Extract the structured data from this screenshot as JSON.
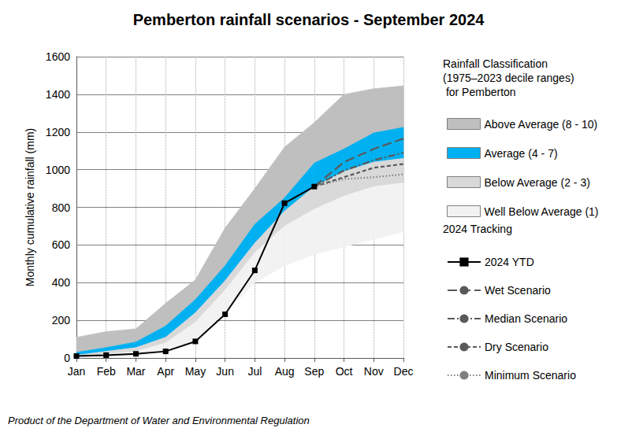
{
  "chart_data": {
    "type": "line",
    "title": "Pemberton rainfall scenarios - September 2024",
    "y_label": "Monthly cumulative rainfall (mm)",
    "categories": [
      "Jan",
      "Feb",
      "Mar",
      "Apr",
      "May",
      "Jun",
      "Jul",
      "Aug",
      "Sep",
      "Oct",
      "Nov",
      "Dec"
    ],
    "ylim": [
      0,
      1600
    ],
    "yticks": [
      0,
      200,
      400,
      600,
      800,
      1000,
      1200,
      1400,
      1600
    ],
    "grid": true,
    "legend": "right",
    "annotations": [
      "Rainfall Classification\n(1975–2023 decile ranges)\n for Pemberton",
      "2024 Tracking",
      "Product of the Department of Water and Environmental Regulation"
    ],
    "series": [
      {
        "name": "Above Average (8 - 10)",
        "type": "range",
        "color": "#bfbfbf",
        "lower": [
          30,
          55,
          85,
          170,
          310,
          490,
          710,
          850,
          1035,
          1110,
          1195,
          1225
        ],
        "upper": [
          110,
          140,
          155,
          290,
          415,
          690,
          900,
          1120,
          1250,
          1400,
          1430,
          1445
        ]
      },
      {
        "name": "Average (4 - 7)",
        "type": "range",
        "color": "#00b0f0",
        "lower": [
          15,
          35,
          55,
          110,
          240,
          410,
          610,
          780,
          910,
          990,
          1040,
          1060
        ],
        "upper": [
          30,
          55,
          85,
          170,
          310,
          490,
          710,
          850,
          1035,
          1110,
          1195,
          1225
        ]
      },
      {
        "name": "Below Average (2 - 3)",
        "type": "range",
        "color": "#d9d9d9",
        "lower": [
          5,
          20,
          35,
          80,
          190,
          360,
          560,
          700,
          790,
          860,
          910,
          930
        ],
        "upper": [
          15,
          35,
          55,
          110,
          240,
          410,
          610,
          780,
          910,
          990,
          1040,
          1060
        ]
      },
      {
        "name": "Well Below Average (1)",
        "type": "range",
        "color": "#f2f2f2",
        "lower": [
          0,
          5,
          10,
          30,
          100,
          240,
          400,
          490,
          550,
          590,
          630,
          670
        ],
        "upper": [
          5,
          20,
          35,
          80,
          190,
          360,
          560,
          700,
          790,
          860,
          910,
          930
        ]
      },
      {
        "name": "2024 YTD",
        "type": "line",
        "color": "#000000",
        "marker": "square",
        "line_style": "solid",
        "values": [
          10,
          15,
          22,
          35,
          88,
          232,
          465,
          822,
          910,
          null,
          null,
          null
        ]
      },
      {
        "name": "Wet Scenario",
        "type": "line",
        "color": "#595959",
        "marker": "none",
        "line_style": "long_dash",
        "values": [
          null,
          null,
          null,
          null,
          null,
          null,
          null,
          null,
          910,
          1040,
          1110,
          1165
        ]
      },
      {
        "name": "Median Scenario",
        "type": "line",
        "color": "#595959",
        "marker": "none",
        "line_style": "dash_dot",
        "values": [
          null,
          null,
          null,
          null,
          null,
          null,
          null,
          null,
          910,
          995,
          1050,
          1090
        ]
      },
      {
        "name": "Dry Scenario",
        "type": "line",
        "color": "#595959",
        "marker": "none",
        "line_style": "dashed",
        "values": [
          null,
          null,
          null,
          null,
          null,
          null,
          null,
          null,
          910,
          960,
          1010,
          1030
        ]
      },
      {
        "name": "Minimum Scenario",
        "type": "line",
        "color": "#7f7f7f",
        "marker": "none",
        "line_style": "dotted",
        "values": [
          null,
          null,
          null,
          null,
          null,
          null,
          null,
          null,
          910,
          950,
          960,
          975
        ]
      }
    ]
  }
}
